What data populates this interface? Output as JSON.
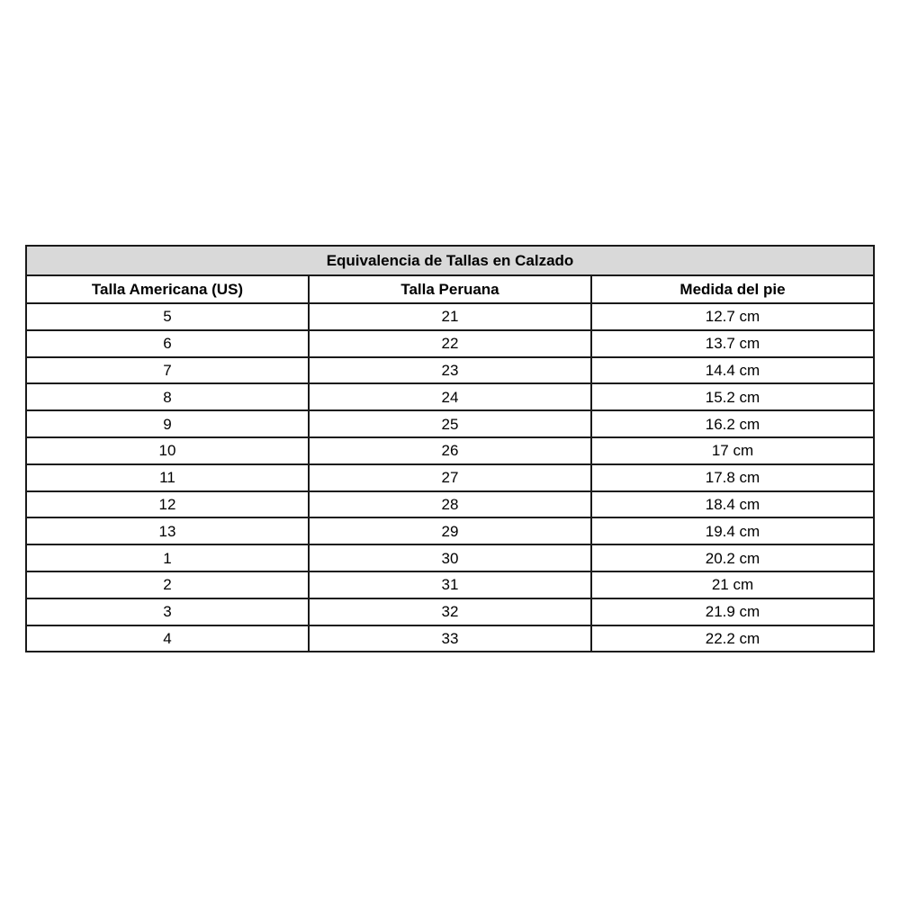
{
  "colors": {
    "page_bg": "#ffffff",
    "title_bg": "#d9d9d9",
    "border": "#1a1a1a",
    "text": "#000000"
  },
  "chart_data": {
    "type": "table",
    "title": "Equivalencia de Tallas en Calzado",
    "columns": [
      "Talla Americana (US)",
      "Talla Peruana",
      "Medida del pie"
    ],
    "rows": [
      [
        "5",
        "21",
        "12.7 cm"
      ],
      [
        "6",
        "22",
        "13.7 cm"
      ],
      [
        "7",
        "23",
        "14.4 cm"
      ],
      [
        "8",
        "24",
        "15.2 cm"
      ],
      [
        "9",
        "25",
        "16.2 cm"
      ],
      [
        "10",
        "26",
        "17 cm"
      ],
      [
        "11",
        "27",
        "17.8 cm"
      ],
      [
        "12",
        "28",
        "18.4 cm"
      ],
      [
        "13",
        "29",
        "19.4 cm"
      ],
      [
        "1",
        "30",
        "20.2 cm"
      ],
      [
        "2",
        "31",
        "21 cm"
      ],
      [
        "3",
        "32",
        "21.9 cm"
      ],
      [
        "4",
        "33",
        "22.2 cm"
      ]
    ],
    "layout_hints": {
      "columns_equal_width": true,
      "grid": "full black grid, 2px",
      "title_band_background": "#d9d9d9",
      "header_weight": "bold",
      "body_weight": "normal"
    }
  }
}
